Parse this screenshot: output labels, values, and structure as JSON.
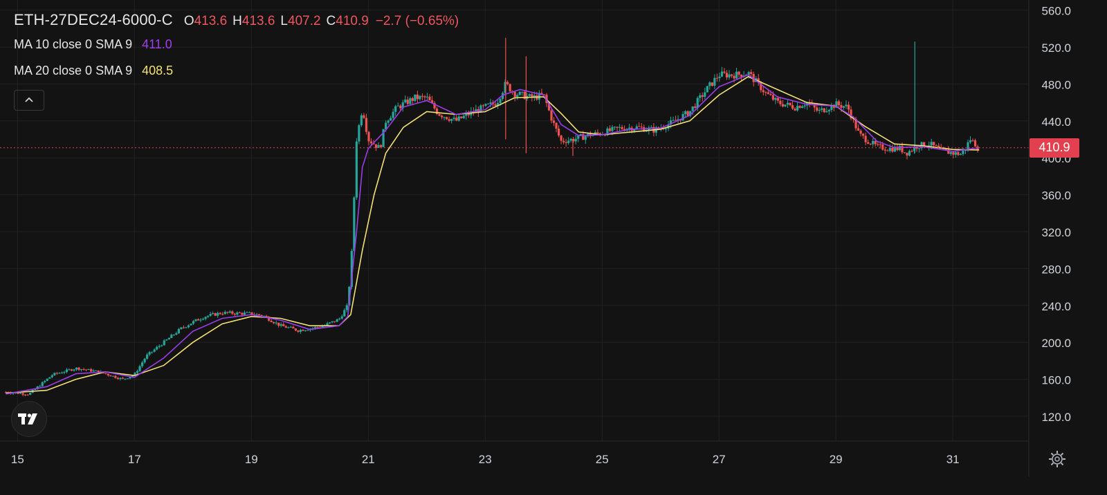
{
  "legend": {
    "symbol": "ETH-27DEC24-6000-C",
    "open_key": "O",
    "open": "413.6",
    "high_key": "H",
    "high": "413.6",
    "low_key": "L",
    "low": "407.2",
    "close_key": "C",
    "close": "410.9",
    "change": "−2.7 (−0.65%)",
    "ma10_label": "MA 10 close 0 SMA 9",
    "ma10_value": "411.0",
    "ma20_label": "MA 20 close 0 SMA 9",
    "ma20_value": "408.5"
  },
  "last_price_tag": "410.9",
  "colors": {
    "background": "#131313",
    "grid": "#222222",
    "up": "#26a69a",
    "down": "#ef5350",
    "ma10": "#9b3de8",
    "ma20": "#f4e178",
    "last_price": "#e2404e"
  },
  "icons": {
    "collapse": "chevron-up-icon",
    "logo": "tradingview-logo",
    "settings": "gear-icon"
  },
  "chart_data": {
    "type": "candlestick",
    "x_ticks": [
      "15",
      "17",
      "19",
      "21",
      "23",
      "25",
      "27",
      "29",
      "31"
    ],
    "y_ticks": [
      "560.0",
      "520.0",
      "480.0",
      "440.0",
      "400.0",
      "360.0",
      "320.0",
      "280.0",
      "240.0",
      "200.0",
      "160.0",
      "120.0"
    ],
    "ylim": [
      93,
      571
    ],
    "xlim_days": [
      14.7,
      32.3
    ],
    "last_price": 410.9,
    "price_path": [
      [
        14.8,
        146
      ],
      [
        15.2,
        144
      ],
      [
        15.6,
        165
      ],
      [
        16.0,
        172
      ],
      [
        16.4,
        168
      ],
      [
        16.8,
        160
      ],
      [
        17.0,
        165
      ],
      [
        17.2,
        185
      ],
      [
        17.5,
        200
      ],
      [
        17.8,
        215
      ],
      [
        18.0,
        222
      ],
      [
        18.2,
        228
      ],
      [
        18.5,
        232
      ],
      [
        19.0,
        231
      ],
      [
        19.2,
        229
      ],
      [
        19.5,
        218
      ],
      [
        19.8,
        213
      ],
      [
        20.2,
        217
      ],
      [
        20.5,
        225
      ],
      [
        20.65,
        240
      ],
      [
        20.72,
        300
      ],
      [
        20.8,
        420
      ],
      [
        20.9,
        455
      ],
      [
        21.0,
        420
      ],
      [
        21.2,
        410
      ],
      [
        21.3,
        440
      ],
      [
        21.5,
        455
      ],
      [
        21.8,
        465
      ],
      [
        22.0,
        465
      ],
      [
        22.2,
        448
      ],
      [
        22.5,
        440
      ],
      [
        22.8,
        450
      ],
      [
        23.0,
        455
      ],
      [
        23.2,
        460
      ],
      [
        23.35,
        480
      ],
      [
        23.5,
        470
      ],
      [
        23.8,
        465
      ],
      [
        24.0,
        468
      ],
      [
        24.15,
        440
      ],
      [
        24.3,
        418
      ],
      [
        24.5,
        420
      ],
      [
        24.8,
        425
      ],
      [
        25.0,
        427
      ],
      [
        25.3,
        432
      ],
      [
        25.6,
        433
      ],
      [
        25.9,
        430
      ],
      [
        26.2,
        438
      ],
      [
        26.5,
        450
      ],
      [
        26.8,
        475
      ],
      [
        27.0,
        490
      ],
      [
        27.3,
        490
      ],
      [
        27.5,
        492
      ],
      [
        27.8,
        470
      ],
      [
        28.0,
        460
      ],
      [
        28.3,
        455
      ],
      [
        28.5,
        460
      ],
      [
        28.7,
        450
      ],
      [
        29.0,
        458
      ],
      [
        29.2,
        455
      ],
      [
        29.4,
        425
      ],
      [
        29.7,
        412
      ],
      [
        29.9,
        410
      ],
      [
        30.1,
        410
      ],
      [
        30.2,
        405
      ],
      [
        30.4,
        413
      ],
      [
        30.6,
        415
      ],
      [
        30.8,
        408
      ],
      [
        31.0,
        405
      ],
      [
        31.15,
        404
      ],
      [
        31.3,
        420
      ],
      [
        31.45,
        410.9
      ]
    ],
    "ma10": [
      [
        14.8,
        144
      ],
      [
        15.5,
        152
      ],
      [
        16.0,
        166
      ],
      [
        16.5,
        168
      ],
      [
        17.0,
        162
      ],
      [
        17.5,
        183
      ],
      [
        18.0,
        212
      ],
      [
        18.5,
        226
      ],
      [
        19.0,
        230
      ],
      [
        19.5,
        224
      ],
      [
        20.0,
        214
      ],
      [
        20.5,
        218
      ],
      [
        20.65,
        228
      ],
      [
        20.8,
        320
      ],
      [
        20.9,
        390
      ],
      [
        21.0,
        410
      ],
      [
        21.3,
        430
      ],
      [
        21.6,
        455
      ],
      [
        22.0,
        462
      ],
      [
        22.5,
        447
      ],
      [
        23.0,
        452
      ],
      [
        23.3,
        468
      ],
      [
        23.6,
        474
      ],
      [
        24.0,
        468
      ],
      [
        24.3,
        436
      ],
      [
        24.6,
        424
      ],
      [
        25.0,
        425
      ],
      [
        25.5,
        431
      ],
      [
        26.0,
        432
      ],
      [
        26.5,
        446
      ],
      [
        27.0,
        477
      ],
      [
        27.5,
        490
      ],
      [
        28.0,
        466
      ],
      [
        28.5,
        458
      ],
      [
        29.0,
        456
      ],
      [
        29.3,
        444
      ],
      [
        29.7,
        418
      ],
      [
        30.0,
        411
      ],
      [
        30.5,
        412
      ],
      [
        31.0,
        407
      ],
      [
        31.45,
        411
      ]
    ],
    "ma20": [
      [
        14.8,
        145
      ],
      [
        15.5,
        148
      ],
      [
        16.0,
        160
      ],
      [
        16.5,
        168
      ],
      [
        17.0,
        164
      ],
      [
        17.5,
        175
      ],
      [
        18.0,
        200
      ],
      [
        18.5,
        220
      ],
      [
        19.0,
        228
      ],
      [
        19.5,
        226
      ],
      [
        20.0,
        218
      ],
      [
        20.5,
        218
      ],
      [
        20.7,
        230
      ],
      [
        20.9,
        300
      ],
      [
        21.1,
        360
      ],
      [
        21.3,
        405
      ],
      [
        21.6,
        433
      ],
      [
        22.0,
        450
      ],
      [
        22.5,
        447
      ],
      [
        23.0,
        450
      ],
      [
        23.5,
        465
      ],
      [
        24.0,
        466
      ],
      [
        24.3,
        448
      ],
      [
        24.6,
        428
      ],
      [
        25.0,
        425
      ],
      [
        25.5,
        428
      ],
      [
        26.0,
        431
      ],
      [
        26.5,
        440
      ],
      [
        27.0,
        468
      ],
      [
        27.5,
        488
      ],
      [
        28.0,
        474
      ],
      [
        28.5,
        460
      ],
      [
        29.0,
        456
      ],
      [
        29.5,
        434
      ],
      [
        30.0,
        415
      ],
      [
        30.5,
        413
      ],
      [
        31.0,
        409
      ],
      [
        31.45,
        408.5
      ]
    ],
    "spikes": [
      {
        "day": 23.35,
        "high": 530,
        "low": 420
      },
      {
        "day": 23.7,
        "high": 510,
        "low": 405
      },
      {
        "day": 30.35,
        "high": 526,
        "low": 405
      },
      {
        "day": 24.5,
        "high": 420,
        "low": 402
      }
    ]
  }
}
